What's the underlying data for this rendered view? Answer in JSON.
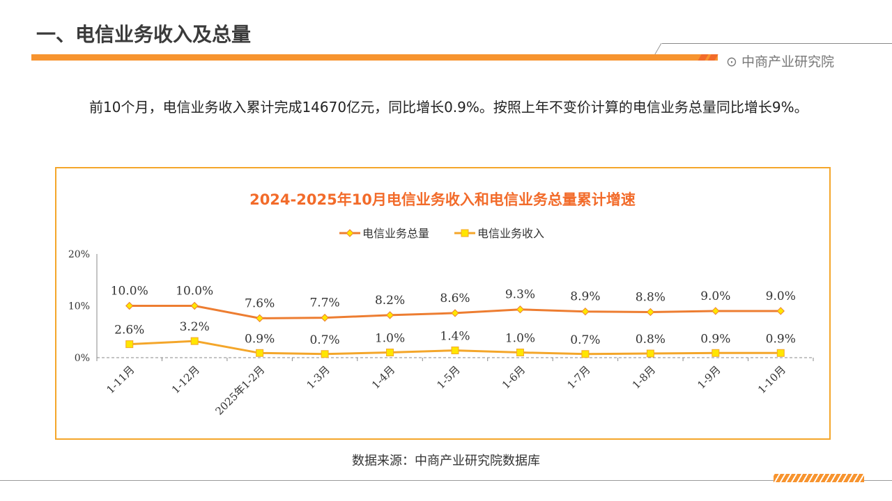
{
  "header": {
    "title": "一、电信业务收入及总量",
    "brand": "中商产业研究院",
    "brand_icon": "target-icon"
  },
  "paragraph": "前10个月，电信业务收入累计完成14670亿元，同比增长0.9%。按照上年不变价计算的电信业务总量同比增长9%。",
  "source": "数据来源：中商产业研究院数据库",
  "chart_data": {
    "type": "line",
    "title": "2024-2025年10月电信业务收入和电信业务总量累计增速",
    "categories": [
      "1-11月",
      "1-12月",
      "2025年1-2月",
      "1-3月",
      "1-4月",
      "1-5月",
      "1-6月",
      "1-7月",
      "1-8月",
      "1-9月",
      "1-10月"
    ],
    "series": [
      {
        "name": "电信业务总量",
        "color": "#ed7d31",
        "marker": "diamond",
        "values": [
          10.0,
          10.0,
          7.6,
          7.7,
          8.2,
          8.6,
          9.3,
          8.9,
          8.8,
          9.0,
          9.0
        ],
        "labels": [
          "10.0%",
          "10.0%",
          "7.6%",
          "7.7%",
          "8.2%",
          "8.6%",
          "9.3%",
          "8.9%",
          "8.8%",
          "9.0%",
          "9.0%"
        ]
      },
      {
        "name": "电信业务收入",
        "color": "#f4a62a",
        "marker": "square",
        "values": [
          2.6,
          3.2,
          0.9,
          0.7,
          1.0,
          1.4,
          1.0,
          0.7,
          0.8,
          0.9,
          0.9
        ],
        "labels": [
          "2.6%",
          "3.2%",
          "0.9%",
          "0.7%",
          "1.0%",
          "1.4%",
          "1.0%",
          "0.7%",
          "0.8%",
          "0.9%",
          "0.9%"
        ]
      }
    ],
    "yticks": [
      "0%",
      "10%",
      "20%"
    ],
    "ylim": [
      0,
      20
    ],
    "legend": "top"
  }
}
